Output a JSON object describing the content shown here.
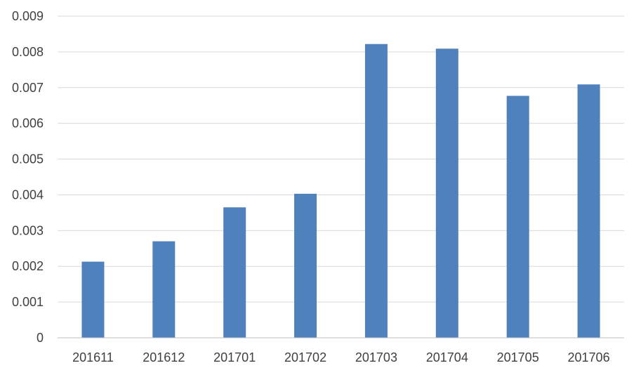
{
  "chart_data": {
    "type": "bar",
    "categories": [
      "201611",
      "201612",
      "201701",
      "201702",
      "201703",
      "201704",
      "201705",
      "201706"
    ],
    "values": [
      0.00213,
      0.0027,
      0.00365,
      0.00403,
      0.00822,
      0.00809,
      0.00677,
      0.00709
    ],
    "ylim": [
      0,
      0.009
    ],
    "yticks": [
      "0",
      "0.001",
      "0.002",
      "0.003",
      "0.004",
      "0.005",
      "0.006",
      "0.007",
      "0.008",
      "0.009"
    ],
    "grid": true,
    "legend": "none",
    "bar_color": "#4f81bd"
  }
}
